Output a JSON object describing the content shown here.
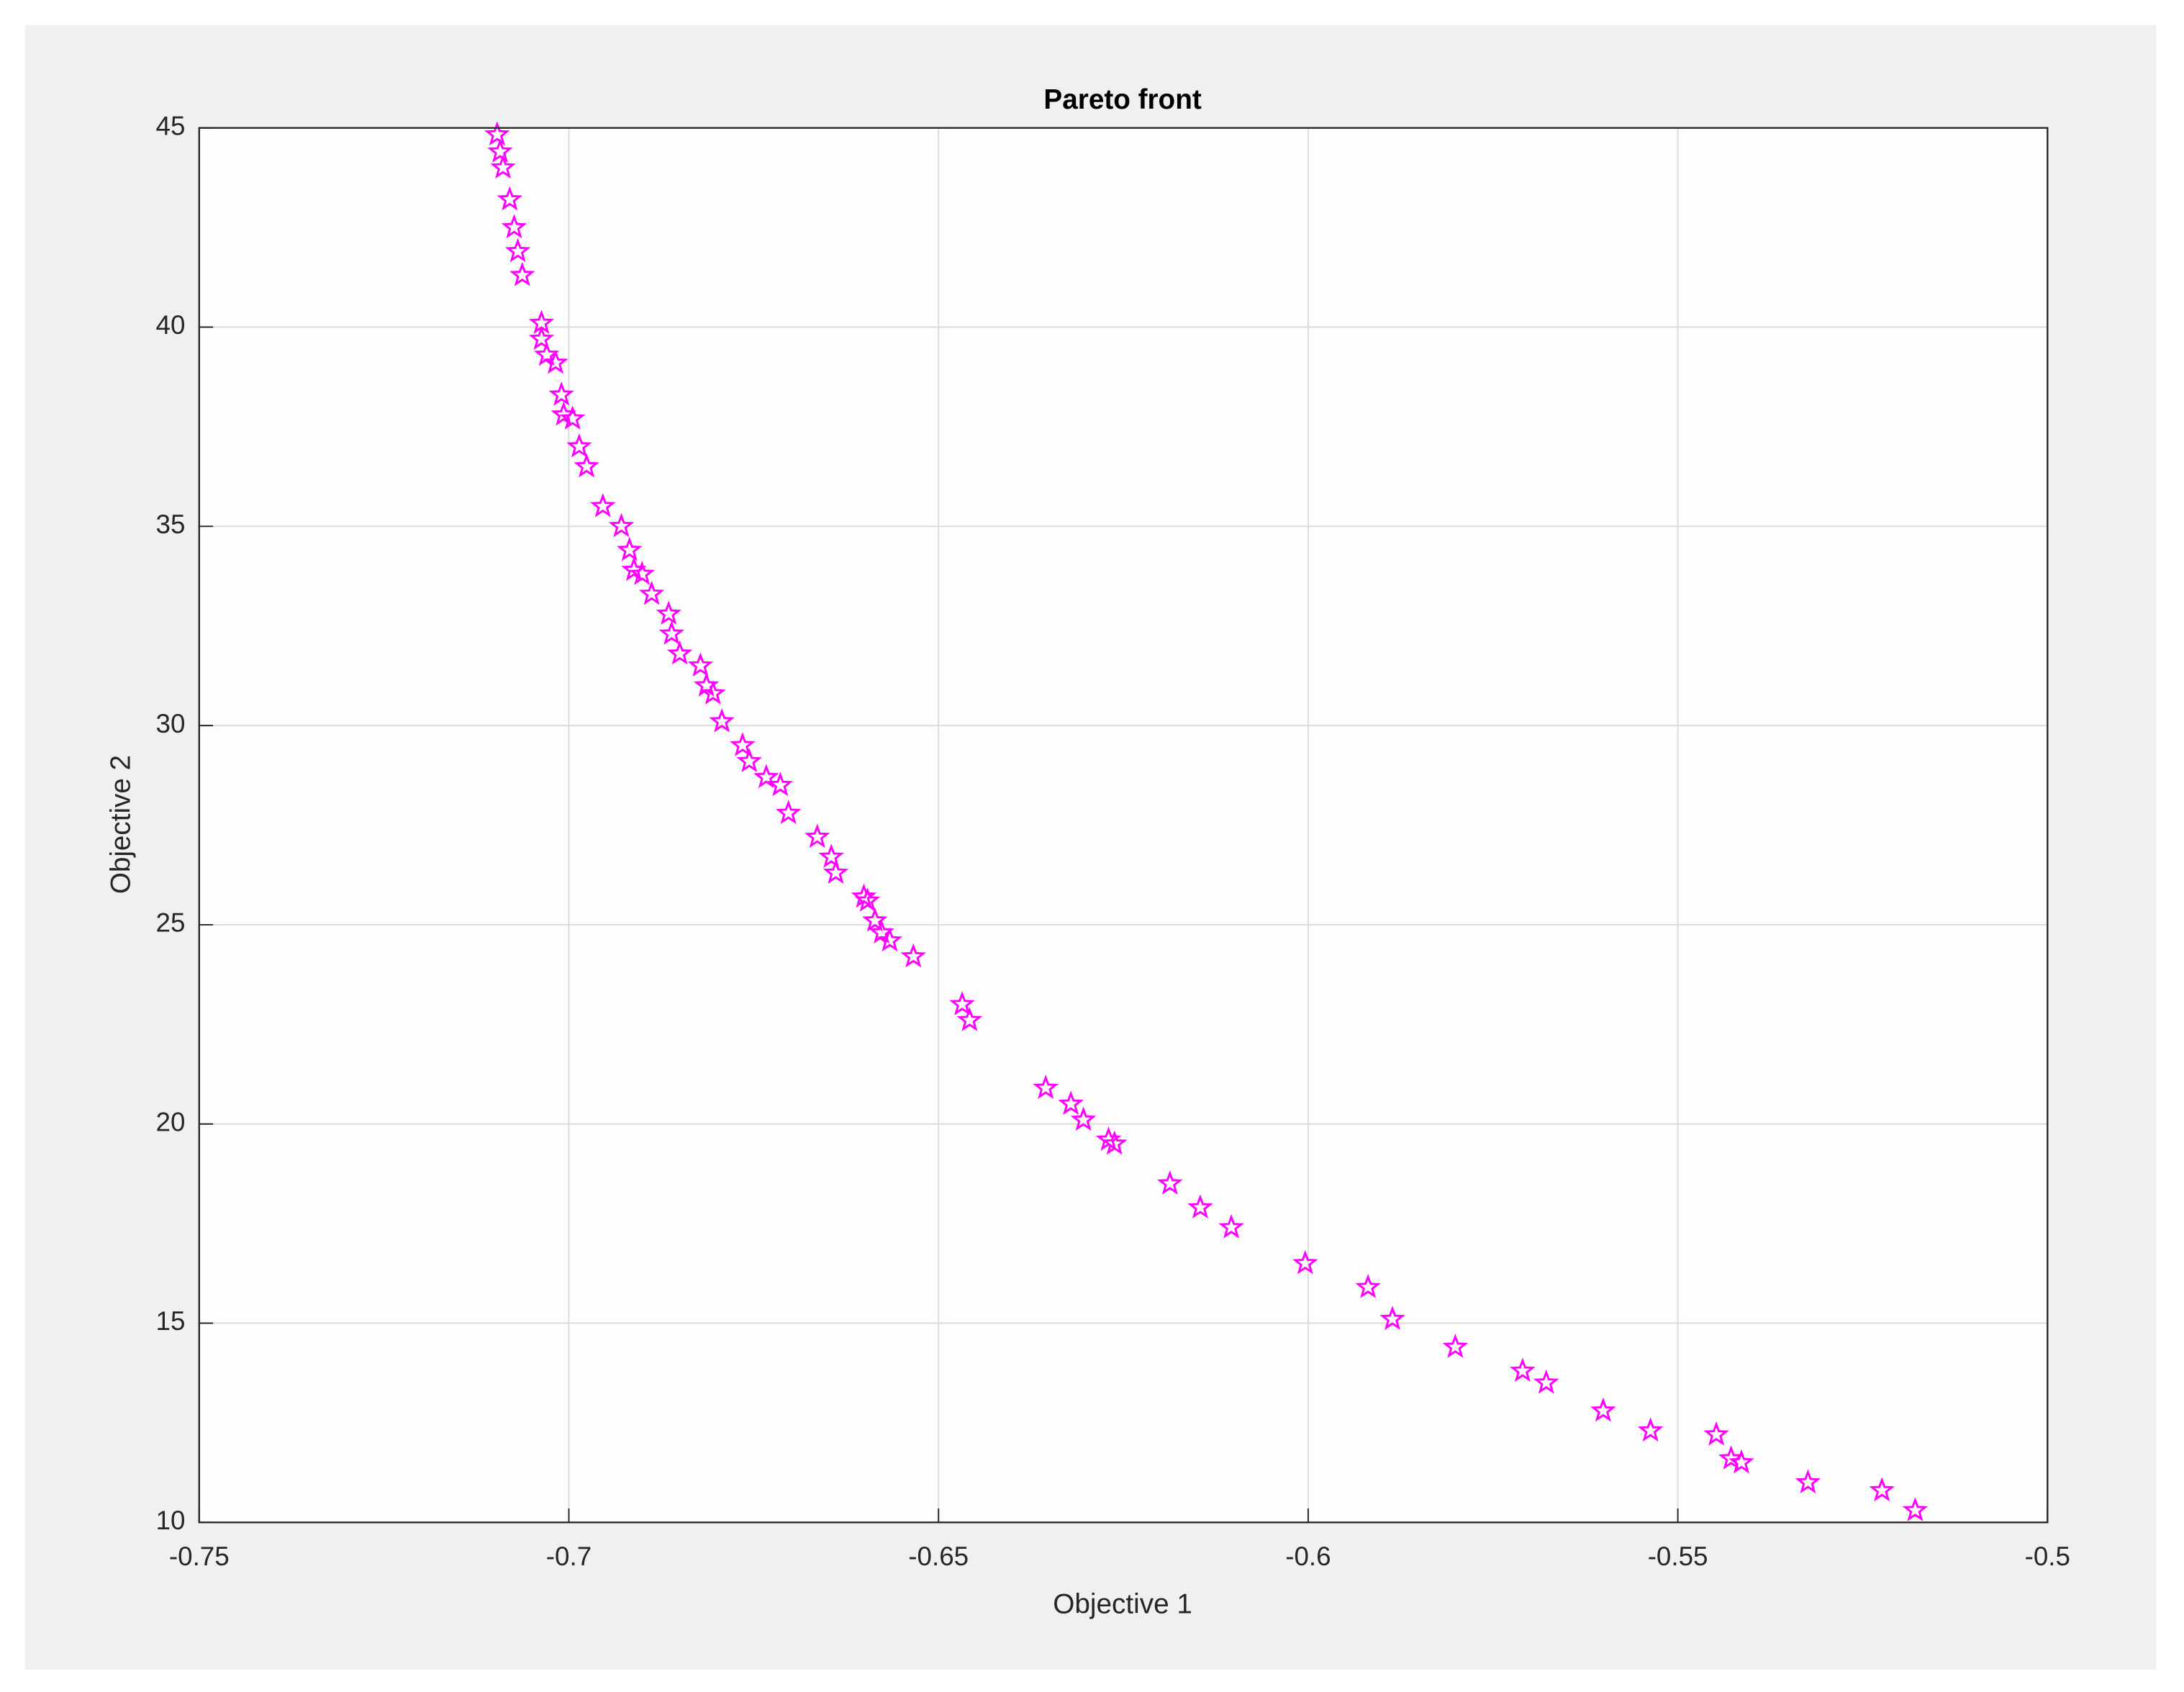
{
  "chart_data": {
    "type": "scatter",
    "title": "Pareto front",
    "x_label": "Objective 1",
    "y_label": "Objective 2",
    "marker": "pentagram",
    "color": "#ff00ff",
    "grid": true,
    "xlim": [
      -0.75,
      -0.5
    ],
    "ylim": [
      10,
      45
    ],
    "xticks": [
      -0.75,
      -0.7,
      -0.65,
      -0.6,
      -0.55,
      -0.5
    ],
    "yticks": [
      10,
      15,
      20,
      25,
      30,
      35,
      40,
      45
    ],
    "x": [
      -0.7097,
      -0.7093,
      -0.7089,
      -0.708,
      -0.7074,
      -0.7069,
      -0.7063,
      -0.7037,
      -0.7037,
      -0.703,
      -0.7018,
      -0.701,
      -0.7007,
      -0.6995,
      -0.6986,
      -0.6976,
      -0.6954,
      -0.6929,
      -0.6918,
      -0.6912,
      -0.6901,
      -0.6888,
      -0.6865,
      -0.6861,
      -0.685,
      -0.6822,
      -0.6814,
      -0.6805,
      -0.6793,
      -0.6765,
      -0.6756,
      -0.6733,
      -0.6714,
      -0.6703,
      -0.6664,
      -0.6645,
      -0.6639,
      -0.6601,
      -0.6596,
      -0.6586,
      -0.6577,
      -0.6566,
      -0.6534,
      -0.6468,
      -0.6458,
      -0.6355,
      -0.6321,
      -0.6304,
      -0.627,
      -0.6262,
      -0.6187,
      -0.6146,
      -0.6104,
      -0.6004,
      -0.5919,
      -0.5886,
      -0.5801,
      -0.571,
      -0.5678,
      -0.5601,
      -0.5537,
      -0.5448,
      -0.5428,
      -0.5414,
      -0.5324,
      -0.5224,
      -0.5179
    ],
    "values": [
      44.83,
      44.4,
      44.0,
      43.2,
      42.5,
      41.9,
      41.3,
      40.1,
      39.7,
      39.3,
      39.1,
      38.3,
      37.8,
      37.7,
      37.0,
      36.5,
      35.5,
      35.0,
      34.4,
      33.9,
      33.8,
      33.3,
      32.8,
      32.3,
      31.8,
      31.5,
      31.0,
      30.8,
      30.1,
      29.5,
      29.1,
      28.7,
      28.5,
      27.8,
      27.2,
      26.7,
      26.3,
      25.7,
      25.6,
      25.1,
      24.8,
      24.6,
      24.2,
      23.0,
      22.6,
      20.9,
      20.5,
      20.1,
      19.6,
      19.5,
      18.5,
      17.9,
      17.4,
      16.5,
      15.9,
      15.1,
      14.4,
      13.8,
      13.5,
      12.8,
      12.3,
      12.2,
      11.6,
      11.5,
      11.0,
      10.8,
      10.3
    ]
  }
}
